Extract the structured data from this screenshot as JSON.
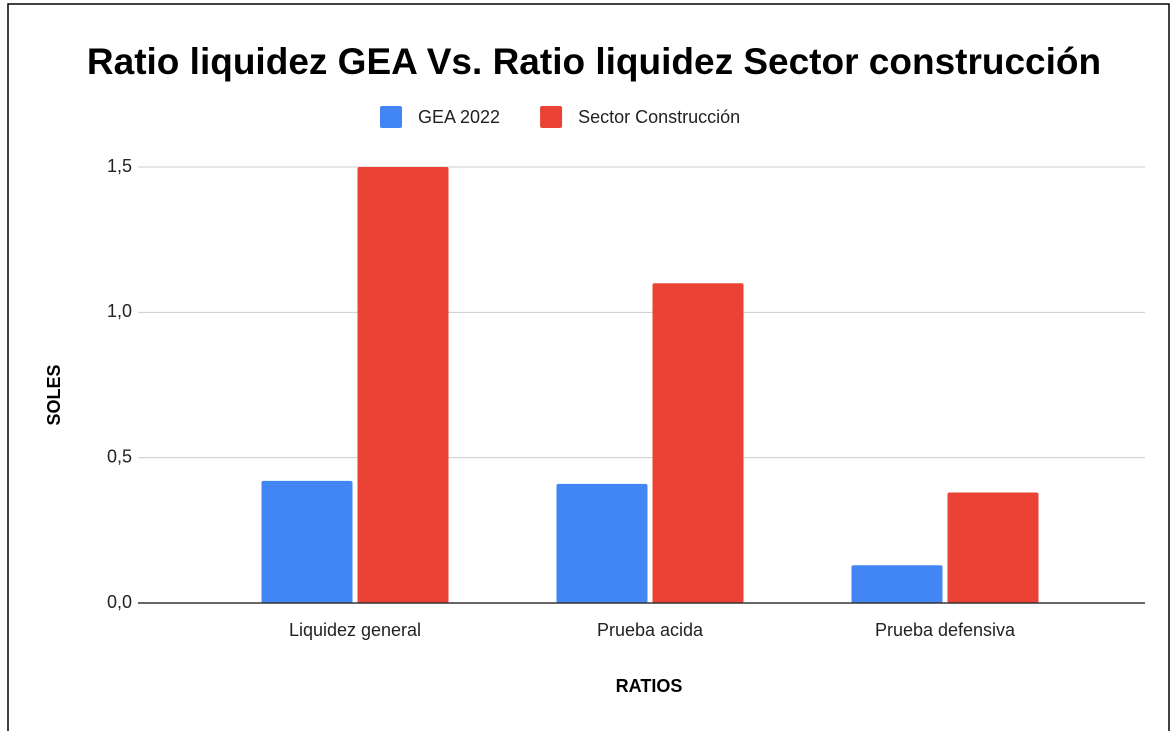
{
  "chart_data": {
    "type": "bar",
    "title": "Ratio liquidez GEA Vs. Ratio liquidez Sector construcción",
    "x_label": "RATIOS",
    "y_label": "SOLES",
    "categories": [
      "Liquidez general",
      "Prueba acida",
      "Prueba defensiva"
    ],
    "series": [
      {
        "name": "GEA 2022",
        "color": "#4285f4",
        "values": [
          0.42,
          0.41,
          0.13
        ]
      },
      {
        "name": "Sector Construcción",
        "color": "#ea4335",
        "values": [
          1.5,
          1.1,
          0.38
        ]
      }
    ],
    "ylim": [
      0,
      1.5
    ],
    "yticks": [
      {
        "value": 0,
        "label": "0,0"
      },
      {
        "value": 0.5,
        "label": "0,5"
      },
      {
        "value": 1,
        "label": "1,0"
      },
      {
        "value": 1.5,
        "label": "1,5"
      }
    ],
    "grid": true,
    "legend": "top"
  }
}
